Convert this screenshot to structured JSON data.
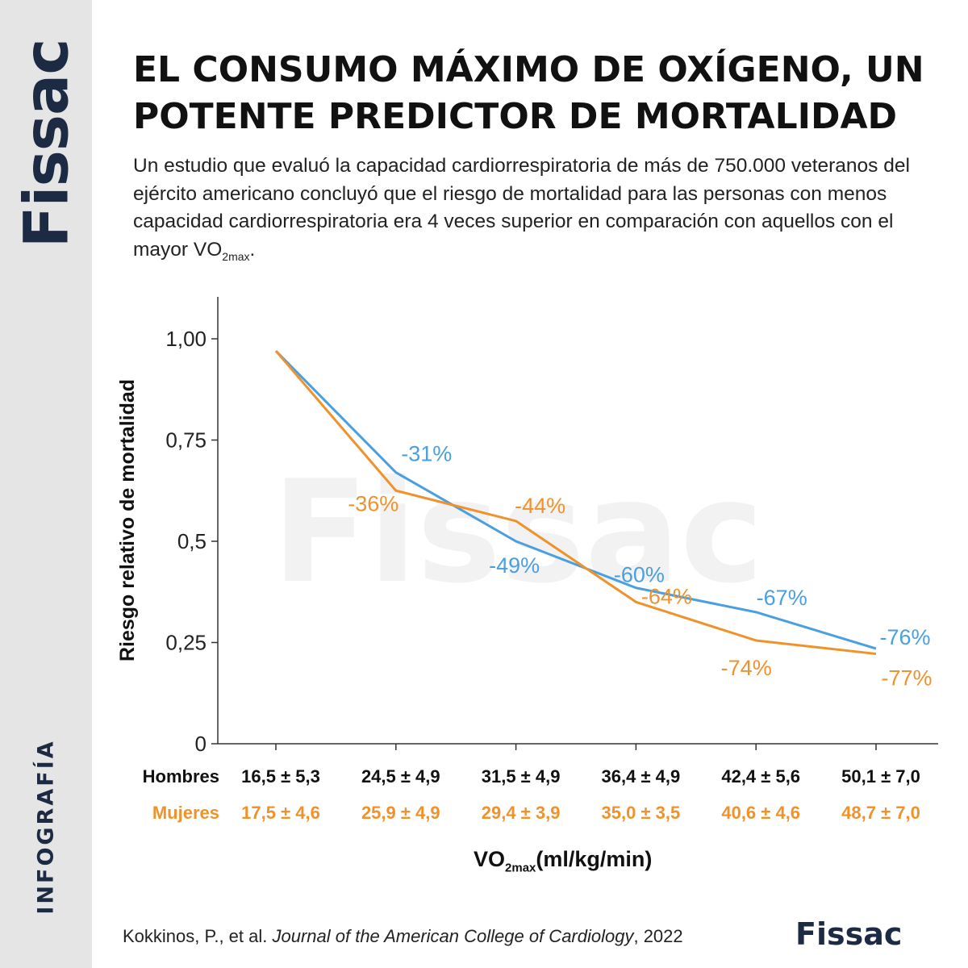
{
  "brand": {
    "side_logo": "Fissac",
    "side_tag": "INFOGRAFÍA",
    "footer_logo": "Fissac",
    "watermark": "Fissac",
    "color": "#1d2a44"
  },
  "header": {
    "title": "EL CONSUMO MÁXIMO DE OXÍGENO, UN POTENTE PREDICTOR DE MORTALIDAD",
    "subtitle_main": "Un estudio que evaluó la capacidad cardiorrespiratoria de más de 750.000 veteranos del ejército americano concluyó que el riesgo de mortalidad para las personas con menos capacidad cardiorrespiratoria era 4 veces superior en comparación con aquellos con el mayor VO",
    "subtitle_sub": "2max",
    "subtitle_end": "."
  },
  "footer": {
    "source_authors": "Kokkinos, P., et al. ",
    "source_journal": "Journal of the American College of Cardiology",
    "source_year": ", 2022"
  },
  "chart_data": {
    "type": "line",
    "ylabel": "Riesgo relativo de mortalidad",
    "xlabel_main": "VO",
    "xlabel_sub": "2max",
    "xlabel_unit": "(ml/kg/min)",
    "ylim": [
      0,
      1.1
    ],
    "yticks": [
      {
        "value": 0,
        "label": "0"
      },
      {
        "value": 0.25,
        "label": "0,25"
      },
      {
        "value": 0.5,
        "label": "0,5"
      },
      {
        "value": 0.75,
        "label": "0,75"
      },
      {
        "value": 1.0,
        "label": "1,00"
      }
    ],
    "grid": false,
    "categories_men": [
      "16,5 ± 5,3",
      "24,5 ± 4,9",
      "31,5 ± 4,9",
      "36,4 ± 4,9",
      "42,4 ± 5,6",
      "50,1 ± 7,0"
    ],
    "categories_women": [
      "17,5 ± 4,6",
      "25,9 ± 4,9",
      "29,4 ± 3,9",
      "35,0 ± 3,5",
      "40,6 ± 4,6",
      "48,7 ± 7,0"
    ],
    "series": [
      {
        "name": "Hombres",
        "color": "#4a9fe0",
        "values": [
          0.97,
          0.67,
          0.5,
          0.385,
          0.325,
          0.235
        ],
        "labels": [
          "",
          "-31%",
          "-49%",
          "-60%",
          "-67%",
          "-76%"
        ]
      },
      {
        "name": "Mujeres",
        "color": "#f0922c",
        "values": [
          0.97,
          0.625,
          0.55,
          0.35,
          0.255,
          0.222
        ],
        "labels": [
          "",
          "-36%",
          "-44%",
          "-64%",
          "-74%",
          "-77%"
        ]
      }
    ]
  }
}
